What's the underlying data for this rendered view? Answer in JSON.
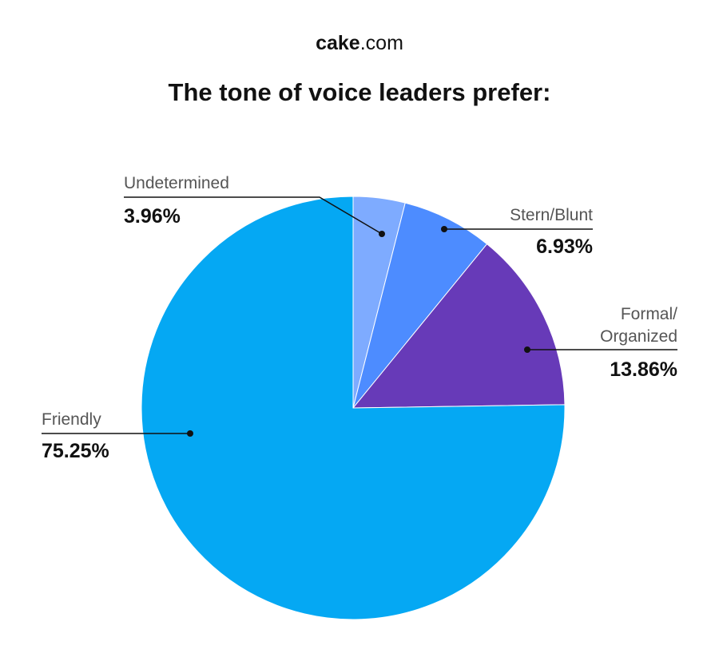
{
  "header": {
    "brand": "cake",
    "domain": ".com"
  },
  "chart_data": {
    "type": "pie",
    "title": "The tone of voice leaders prefer:",
    "categories": [
      "Undetermined",
      "Stern/Blunt",
      "Formal/ Organized",
      "Friendly"
    ],
    "values": [
      3.96,
      6.93,
      13.86,
      75.25
    ],
    "value_labels": [
      "3.96%",
      "6.93%",
      "13.86%",
      "75.25%"
    ],
    "colors": [
      "#7eabff",
      "#4d8cff",
      "#673ab8",
      "#05a8f3"
    ]
  }
}
